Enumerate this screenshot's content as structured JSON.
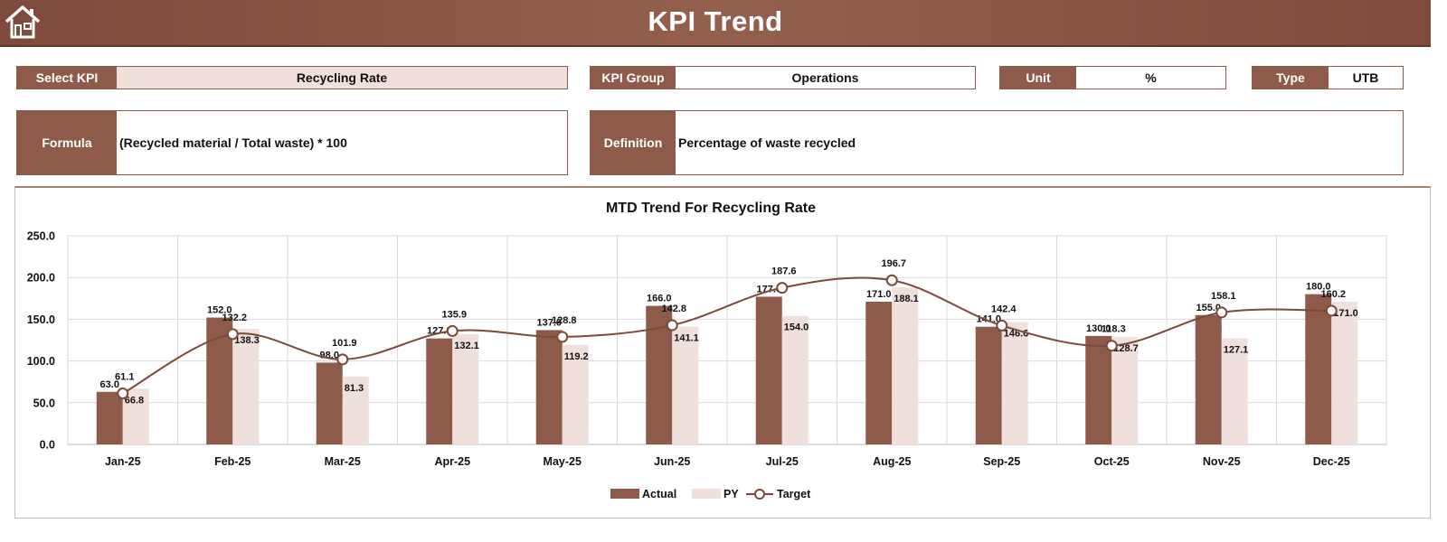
{
  "header": {
    "title": "KPI Trend",
    "home_icon": "home-icon"
  },
  "fields": {
    "select_kpi": {
      "label": "Select KPI",
      "value": "Recycling Rate"
    },
    "kpi_group": {
      "label": "KPI Group",
      "value": "Operations"
    },
    "unit": {
      "label": "Unit",
      "value": "%"
    },
    "type": {
      "label": "Type",
      "value": "UTB"
    },
    "formula": {
      "label": "Formula",
      "value": "(Recycled material / Total waste) * 100"
    },
    "definition": {
      "label": "Definition",
      "value": "Percentage of waste recycled"
    }
  },
  "colors": {
    "actual": "#8e5b4a",
    "py": "#efe0db",
    "target": "#7a4a3b",
    "header": "#8e5b4a"
  },
  "chart_data": {
    "type": "bar",
    "title": "MTD Trend For Recycling Rate",
    "categories": [
      "Jan-25",
      "Feb-25",
      "Mar-25",
      "Apr-25",
      "May-25",
      "Jun-25",
      "Jul-25",
      "Aug-25",
      "Sep-25",
      "Oct-25",
      "Nov-25",
      "Dec-25"
    ],
    "series": [
      {
        "name": "Actual",
        "type": "bar",
        "values": [
          63.0,
          152.0,
          98.0,
          127.0,
          137.0,
          166.0,
          177.0,
          171.0,
          141.0,
          130.0,
          155.0,
          180.0
        ]
      },
      {
        "name": "PY",
        "type": "bar",
        "values": [
          66.8,
          138.3,
          81.3,
          132.1,
          119.2,
          141.1,
          154.0,
          188.1,
          146.6,
          128.7,
          127.1,
          171.0
        ]
      },
      {
        "name": "Target",
        "type": "line",
        "values": [
          61.1,
          132.2,
          101.9,
          135.9,
          128.8,
          142.8,
          187.6,
          196.7,
          142.4,
          118.3,
          158.1,
          160.2
        ]
      }
    ],
    "ylim": [
      0,
      250
    ],
    "yticks": [
      "0.0",
      "50.0",
      "100.0",
      "150.0",
      "200.0",
      "250.0"
    ],
    "grid": true,
    "legend": "bottom"
  }
}
